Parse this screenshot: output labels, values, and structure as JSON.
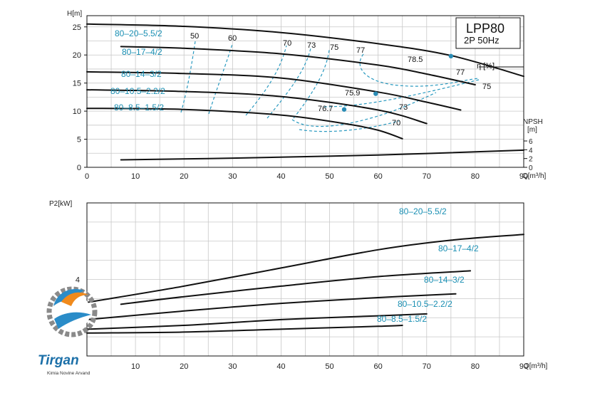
{
  "title_box": {
    "model": "LPP80",
    "spec": "2P  50Hz"
  },
  "logo": {
    "name": "Tirgan",
    "tagline": "Kimia Novine Arvand"
  },
  "chart_data": [
    {
      "type": "line",
      "ylabel": "H[m]",
      "xlabel": "Q[m³/h]",
      "xlim": [
        0,
        90
      ],
      "ylim": [
        0,
        27
      ],
      "x_ticks": [
        0,
        10,
        20,
        30,
        40,
        50,
        60,
        70,
        80,
        90
      ],
      "y_ticks": [
        0,
        5,
        10,
        15,
        20,
        25
      ],
      "grid": true,
      "series": [
        {
          "name": "80–20–5.5/2",
          "points": [
            [
              0,
              25.5
            ],
            [
              20,
              25.1
            ],
            [
              40,
              24
            ],
            [
              60,
              22
            ],
            [
              75,
              19.9
            ],
            [
              90,
              16.2
            ]
          ]
        },
        {
          "name": "80–17–4/2",
          "points": [
            [
              7,
              21.5
            ],
            [
              20,
              21.2
            ],
            [
              40,
              20.2
            ],
            [
              60,
              18.2
            ],
            [
              70,
              16.6
            ],
            [
              80,
              14.7
            ]
          ]
        },
        {
          "name": "80–14–3/2",
          "points": [
            [
              0,
              17
            ],
            [
              20,
              16.7
            ],
            [
              40,
              15.9
            ],
            [
              60,
              13.4
            ],
            [
              70,
              11.6
            ],
            [
              77,
              10.2
            ]
          ]
        },
        {
          "name": "80–10.5–2.2/2",
          "points": [
            [
              0,
              13.8
            ],
            [
              20,
              13.5
            ],
            [
              40,
              12.6
            ],
            [
              60,
              10.2
            ],
            [
              70,
              7.8
            ]
          ]
        },
        {
          "name": "80–8.5–1.5/2",
          "points": [
            [
              0,
              10.5
            ],
            [
              20,
              10.3
            ],
            [
              40,
              9.3
            ],
            [
              53,
              7.8
            ],
            [
              60,
              6.6
            ],
            [
              65,
              5.1
            ]
          ]
        }
      ],
      "efficiency_labels": [
        "50",
        "60",
        "70",
        "73",
        "75",
        "77",
        "78.5",
        "77",
        "75",
        "75.9",
        "73",
        "76.7",
        "70"
      ],
      "efficiency_axis": "η [%]",
      "best_efficiency_points": [
        {
          "label": "78.5",
          "x": 75,
          "y": 19.8
        },
        {
          "label": "75.9",
          "x": 59.5,
          "y": 13.1
        },
        {
          "label": "76.7",
          "x": 53,
          "y": 10.3
        }
      ],
      "npsh": {
        "label": "NPSH",
        "unit": "[m]",
        "ticks": [
          0,
          2,
          4,
          6
        ],
        "points": [
          [
            7,
            1.7
          ],
          [
            30,
            2.1
          ],
          [
            60,
            2.8
          ],
          [
            90,
            3.9
          ]
        ]
      }
    },
    {
      "type": "line",
      "ylabel": "P2[kW]",
      "xlabel": "Q[m³/h]",
      "xlim": [
        0,
        90
      ],
      "ylim": [
        0,
        8
      ],
      "x_ticks": [
        10,
        20,
        30,
        40,
        50,
        60,
        70,
        80,
        90
      ],
      "y_ticks": [
        4
      ],
      "grid": true,
      "series": [
        {
          "name": "80–20–5.5/2",
          "points": [
            [
              0,
              2.8
            ],
            [
              20,
              3.65
            ],
            [
              40,
              4.6
            ],
            [
              60,
              5.55
            ],
            [
              75,
              6.05
            ],
            [
              90,
              6.35
            ]
          ]
        },
        {
          "name": "80–17–4/2",
          "points": [
            [
              7,
              2.7
            ],
            [
              20,
              3.1
            ],
            [
              40,
              3.65
            ],
            [
              60,
              4.15
            ],
            [
              79,
              4.45
            ]
          ]
        },
        {
          "name": "80–14–3/2",
          "points": [
            [
              0,
              1.9
            ],
            [
              20,
              2.35
            ],
            [
              40,
              2.75
            ],
            [
              60,
              3.05
            ],
            [
              76,
              3.25
            ]
          ]
        },
        {
          "name": "80–10.5–2.2/2",
          "points": [
            [
              0,
              1.4
            ],
            [
              20,
              1.6
            ],
            [
              40,
              1.9
            ],
            [
              60,
              2.1
            ],
            [
              70,
              2.2
            ]
          ]
        },
        {
          "name": "80–8.5–1.5/2",
          "points": [
            [
              0,
              1.2
            ],
            [
              20,
              1.25
            ],
            [
              40,
              1.4
            ],
            [
              60,
              1.55
            ],
            [
              65,
              1.6
            ]
          ]
        }
      ]
    }
  ]
}
